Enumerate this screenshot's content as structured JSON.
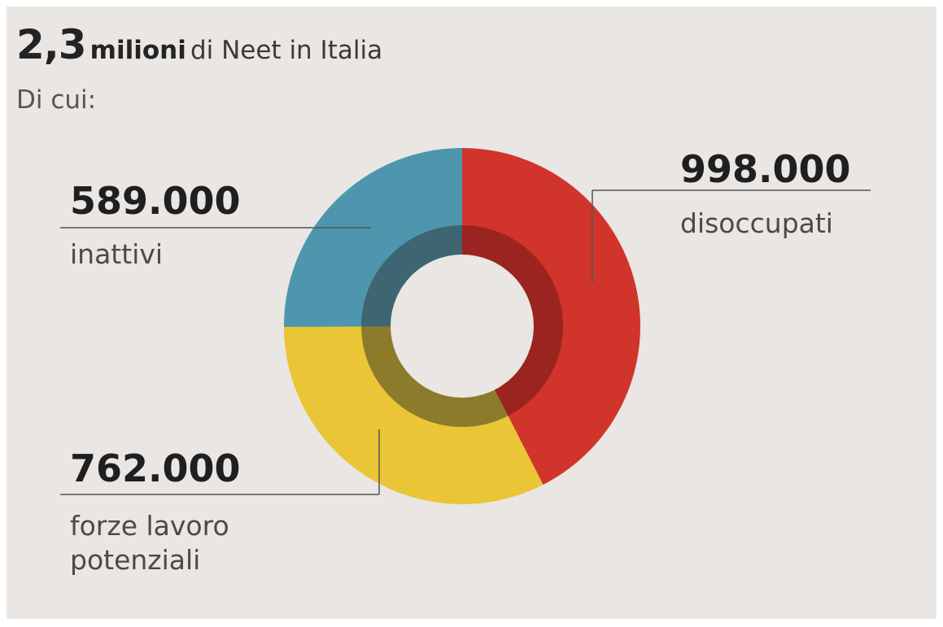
{
  "chart_data": {
    "type": "pie",
    "title_number": "2,3",
    "title_unit": "milioni",
    "title_rest": "di Neet in Italia",
    "subtitle": "Di cui:",
    "slices": [
      {
        "label": "disoccupati",
        "value": 998000,
        "display": "998.000",
        "color": "#d1342a",
        "inner_color": "#9b2420"
      },
      {
        "label_lines": [
          "forze lavoro",
          "potenziali"
        ],
        "value": 762000,
        "display": "762.000",
        "color": "#eac535",
        "inner_color": "#8c7b2b"
      },
      {
        "label": "inattivi",
        "value": 589000,
        "display": "589.000",
        "color": "#4e96ae",
        "inner_color": "#3d6672"
      }
    ],
    "legend": "callouts"
  }
}
